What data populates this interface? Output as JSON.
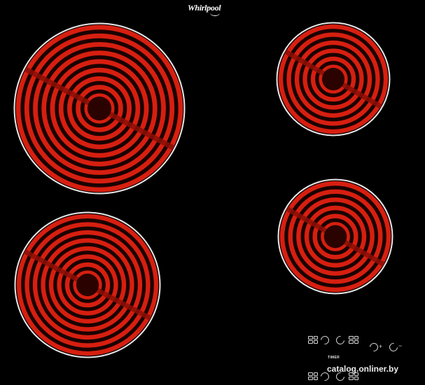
{
  "brand": {
    "logo_text": "Whirlpool"
  },
  "hob": {
    "surface_color": "#000000",
    "zone_color": "#d61f10",
    "zone_dark": "#8c0f06",
    "zone_rim": "#e8e8e8",
    "zones": [
      {
        "name": "front-left-large",
        "rings": 9
      },
      {
        "name": "back-left",
        "rings": 8
      },
      {
        "name": "back-right",
        "rings": 6
      },
      {
        "name": "front-right",
        "rings": 6
      }
    ]
  },
  "controls": {
    "timer_label": "TIMER",
    "plus_label": "+",
    "minus_label": "−"
  },
  "watermark": "catalog.onliner.by"
}
